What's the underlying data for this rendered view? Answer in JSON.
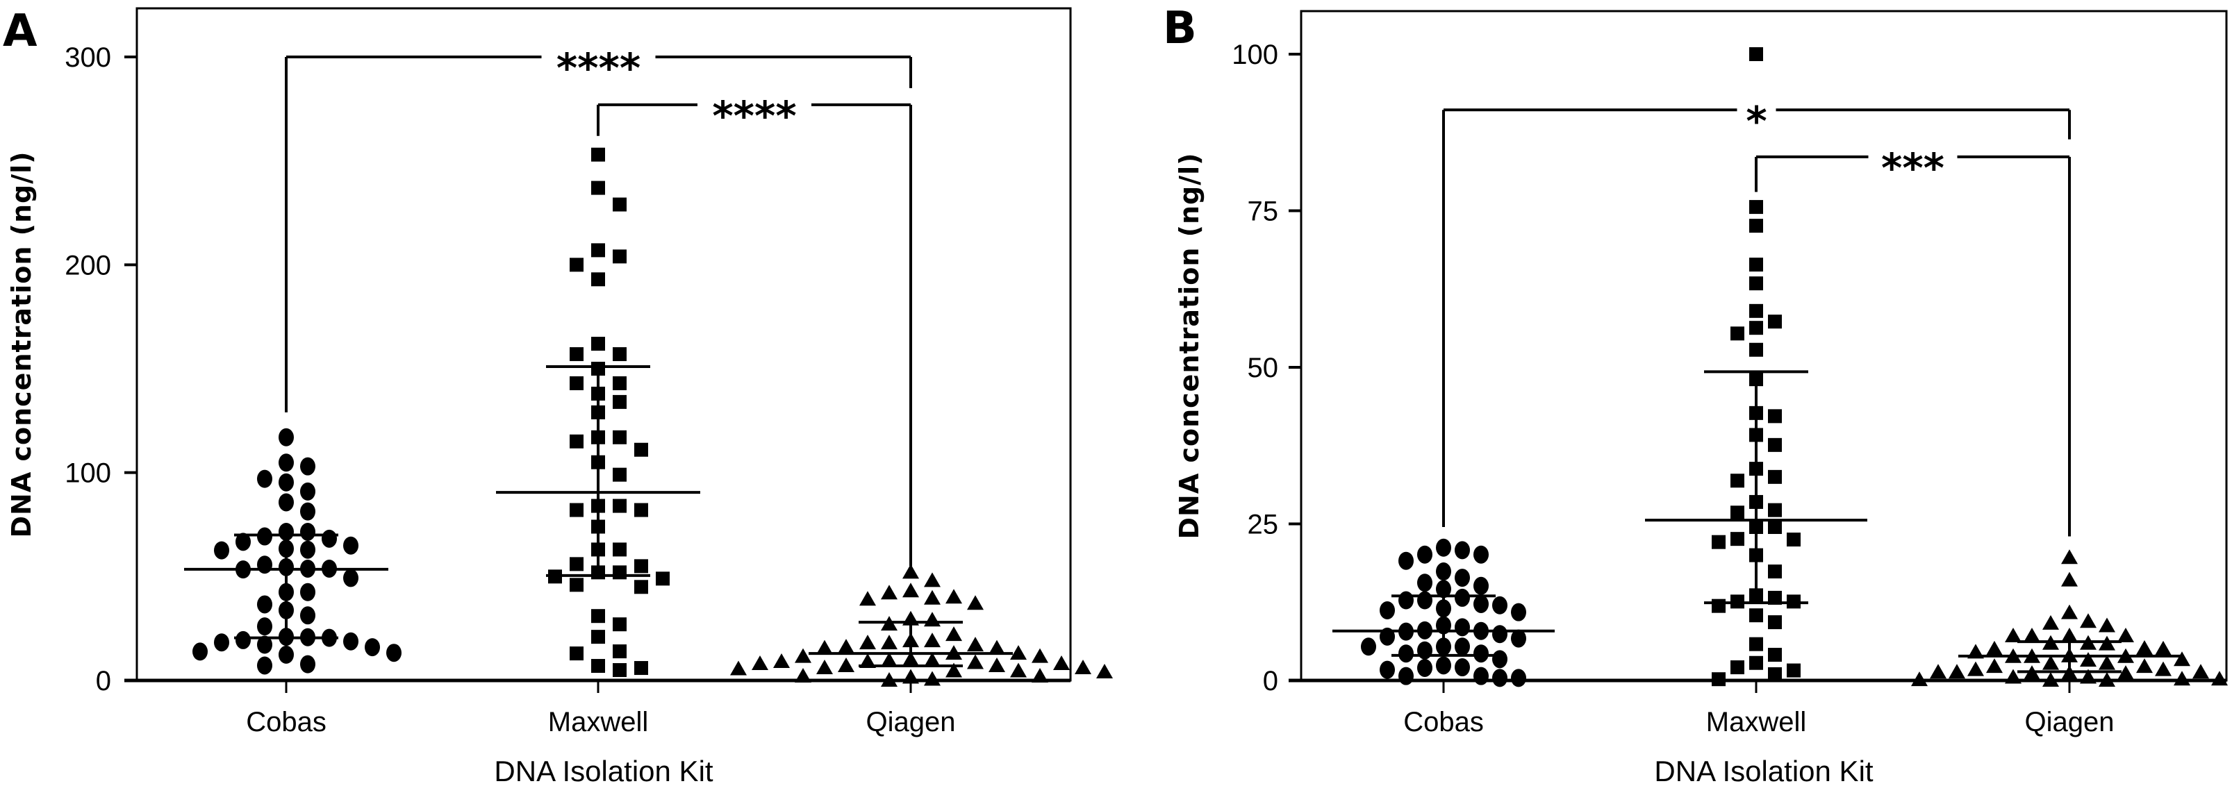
{
  "chart_data": [
    {
      "panel": "A",
      "type": "scatter",
      "subtype": "dot-plot with mean and error bars",
      "title": "",
      "xlabel": "DNA Isolation Kit",
      "ylabel": "DNA concentration (ng/l)",
      "ylim": [
        0,
        320
      ],
      "yticks": [
        0,
        100,
        200,
        300
      ],
      "categories": [
        "Cobas",
        "Maxwell",
        "Qiagen"
      ],
      "grid": false,
      "series": [
        {
          "name": "Cobas",
          "marker": "circle",
          "values": [
            117,
            104.8,
            103,
            97,
            95.3,
            90.9,
            85.7,
            81.3,
            71.5,
            71.5,
            69.3,
            68.2,
            66.7,
            64.9,
            63.4,
            62.9,
            62.6,
            55.7,
            54.5,
            53.8,
            53.8,
            53.4,
            49.3,
            42.5,
            42.5,
            36.6,
            33.8,
            31.3,
            26,
            21,
            20.8,
            20.5,
            19.4,
            18.8,
            18.3,
            17.2,
            16,
            13.9,
            13.3,
            12.4,
            7.8,
            7.2
          ],
          "mean": 53.5,
          "error_upper": 70,
          "error_lower": 20.5
        },
        {
          "name": "Maxwell",
          "marker": "square",
          "values": [
            253,
            237,
            229,
            207,
            204,
            200,
            193,
            162,
            157,
            157,
            150,
            143,
            143,
            138,
            134,
            129,
            117,
            117,
            115,
            111,
            105,
            99,
            84,
            84,
            82,
            82,
            74,
            63,
            63,
            56,
            55,
            52,
            52,
            50,
            49,
            46,
            45,
            31,
            27,
            21,
            14,
            13,
            7,
            6,
            5
          ],
          "mean": 90.5,
          "error_upper": 151,
          "error_lower": 50.5
        },
        {
          "name": "Qiagen",
          "marker": "triangle",
          "values": [
            52,
            48,
            43,
            42,
            40,
            39.5,
            39,
            37,
            29.5,
            29,
            27,
            22,
            19,
            19,
            18,
            18,
            17,
            16,
            15.5,
            15.5,
            13,
            13,
            11.5,
            11.5,
            10,
            9.5,
            9.5,
            9,
            9,
            8.5,
            8,
            8,
            7,
            7,
            6,
            6,
            5.5,
            4.5,
            4.5,
            4,
            2,
            2,
            1.5,
            0.5,
            0
          ],
          "mean": 13,
          "error_upper": 28,
          "error_lower": 7
        }
      ],
      "annotations": [
        {
          "from": "Cobas",
          "to": "Qiagen",
          "label": "****",
          "y": 300,
          "left_leg_to": 129,
          "right_leg_to": 285
        },
        {
          "from": "Maxwell",
          "to": "Qiagen",
          "label": "****",
          "y": 277,
          "left_leg_to": 262,
          "right_leg_to": 55
        }
      ]
    },
    {
      "panel": "B",
      "type": "scatter",
      "subtype": "dot-plot with mean and error bars",
      "title": "",
      "xlabel": "DNA Isolation Kit",
      "ylabel": "DNA concentration (ng/l)",
      "ylim": [
        0,
        107
      ],
      "yticks": [
        0,
        25,
        50,
        75,
        100
      ],
      "categories": [
        "Cobas",
        "Maxwell",
        "Qiagen"
      ],
      "grid": false,
      "series": [
        {
          "name": "Cobas",
          "marker": "circle",
          "values": [
            21.2,
            20.8,
            20.1,
            20.1,
            19.1,
            17.4,
            16.4,
            15.6,
            15.1,
            14.6,
            13.2,
            12.8,
            12.8,
            12.2,
            12,
            11.5,
            11.2,
            10.9,
            8.8,
            8.5,
            8,
            7.9,
            7.8,
            7.4,
            7,
            6.7,
            5.4,
            5.4,
            5.4,
            4.8,
            4.3,
            4.3,
            3.4,
            2.4,
            2.1,
            2,
            1.7,
            0.7,
            0.7,
            0.4,
            0.4
          ],
          "mean": 7.9,
          "error_upper": 13.5,
          "error_lower": 4
        },
        {
          "name": "Maxwell",
          "marker": "square",
          "values": [
            100,
            75.6,
            72.6,
            66.4,
            63.4,
            59,
            57.3,
            56.3,
            55.4,
            52.8,
            48.1,
            42.7,
            42.2,
            39.2,
            37.6,
            33.8,
            32.5,
            31.9,
            28.5,
            27.2,
            26.8,
            24.5,
            24.5,
            22.6,
            22.5,
            22.1,
            20,
            17.4,
            13.6,
            13.2,
            12.6,
            12.6,
            11.9,
            10.4,
            9.3,
            5.8,
            4.1,
            2.8,
            2.1,
            1.6,
            1,
            0.2
          ],
          "mean": 25.6,
          "error_upper": 49.3,
          "error_lower": 12.4
        },
        {
          "name": "Qiagen",
          "marker": "triangle",
          "values": [
            19.6,
            16,
            10.8,
            9.4,
            9.1,
            8.7,
            7.1,
            7.1,
            7.1,
            7.1,
            5.9,
            5.9,
            5.8,
            5.1,
            5,
            5,
            4.5,
            3.9,
            3.8,
            3.8,
            3.8,
            3.3,
            3.2,
            2.7,
            2.7,
            2.2,
            2.2,
            1.7,
            1.7,
            1.3,
            1.3,
            1.3,
            1.1,
            1.1,
            1.1,
            0.5,
            0.5,
            0.2,
            0.2,
            0.1,
            0,
            0
          ],
          "mean": 3.9,
          "error_upper": 6.2,
          "error_lower": 1.4
        }
      ],
      "annotations": [
        {
          "from": "Cobas",
          "to": "Qiagen",
          "label": "*",
          "y": 91.1,
          "left_leg_to": 24.5,
          "right_leg_to": 86.4
        },
        {
          "from": "Maxwell",
          "to": "Qiagen",
          "label": "***",
          "y": 83.6,
          "left_leg_to": 78,
          "right_leg_to": 23
        }
      ]
    }
  ]
}
